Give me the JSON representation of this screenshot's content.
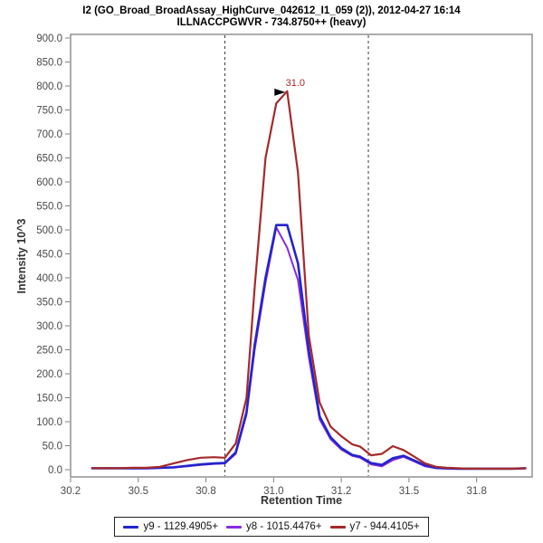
{
  "chart_data": {
    "type": "line",
    "title": "I2 (GO_Broad_BroadAssay_HighCurve_042612_I1_059 (2)), 2012-04-27 16:14",
    "subtitle": "ILLNACCPGWVR - 734.8750++ (heavy)",
    "xlabel": "Retention Time",
    "ylabel": "Intensity 10^3",
    "xlim": [
      30.25,
      31.955
    ],
    "ylim": [
      0,
      900
    ],
    "grid": false,
    "legend_position": "bottom",
    "x_tick_values": [
      30.25,
      30.5,
      30.75,
      31.0,
      31.25,
      31.5,
      31.75
    ],
    "x_tick_labels": [
      "30.2",
      "30.5",
      "30.8",
      "31.0",
      "31.2",
      "31.5",
      "31.8"
    ],
    "y_tick_values": [
      0,
      50,
      100,
      150,
      200,
      250,
      300,
      350,
      400,
      450,
      500,
      550,
      600,
      650,
      700,
      750,
      800,
      850,
      900
    ],
    "y_tick_labels": [
      "0.0",
      "50.0",
      "100.0",
      "150.0",
      "200.0",
      "250.0",
      "300.0",
      "350.0",
      "400.0",
      "450.0",
      "500.0",
      "550.0",
      "600.0",
      "650.0",
      "700.0",
      "750.0",
      "800.0",
      "850.0",
      "900.0"
    ],
    "integration_boundaries": [
      30.82,
      31.35
    ],
    "peak_annotation": {
      "label": "31.0",
      "x": 31.05,
      "y": 789
    },
    "x": [
      30.33,
      30.38,
      30.43,
      30.48,
      30.53,
      30.58,
      30.63,
      30.68,
      30.73,
      30.78,
      30.82,
      30.86,
      30.9,
      30.93,
      30.97,
      31.01,
      31.05,
      31.09,
      31.13,
      31.17,
      31.21,
      31.25,
      31.29,
      31.32,
      31.36,
      31.4,
      31.44,
      31.48,
      31.52,
      31.56,
      31.6,
      31.64,
      31.68,
      31.73,
      31.78,
      31.83,
      31.88,
      31.93
    ],
    "series": [
      {
        "name": "y9 - 1129.4905+",
        "color": "#2424CE",
        "values": [
          3,
          3,
          3,
          3,
          3,
          4,
          5,
          8,
          11,
          13,
          14,
          36,
          120,
          260,
          400,
          510,
          510,
          430,
          250,
          111,
          68,
          45,
          31,
          27,
          14,
          10,
          24,
          29,
          19,
          9,
          4,
          3,
          2,
          2,
          2,
          2,
          2,
          3
        ]
      },
      {
        "name": "y8 - 1015.4476+",
        "color": "#8A2BE2",
        "values": [
          3,
          3,
          3,
          3,
          3,
          4,
          5,
          7,
          10,
          12,
          13,
          33,
          115,
          250,
          390,
          505,
          463,
          395,
          235,
          105,
          64,
          42,
          29,
          25,
          11,
          7,
          20,
          27,
          17,
          7,
          3,
          2,
          2,
          2,
          2,
          2,
          2,
          3
        ]
      },
      {
        "name": "y7 - 944.4105+",
        "color": "#A52A2A",
        "values": [
          3,
          3,
          3,
          4,
          4,
          6,
          13,
          20,
          25,
          26,
          25,
          55,
          150,
          380,
          650,
          764,
          789,
          619,
          280,
          140,
          90,
          70,
          53,
          48,
          30,
          33,
          49,
          41,
          27,
          13,
          6,
          4,
          3,
          2,
          2,
          2,
          2,
          3
        ]
      }
    ],
    "frame_color": "#808080",
    "tick_label_color": "#4a4a4a",
    "boundary_line_color": "#3c3c3c",
    "annotation_color": "#A52A2A",
    "arrow_color": "#000000"
  }
}
